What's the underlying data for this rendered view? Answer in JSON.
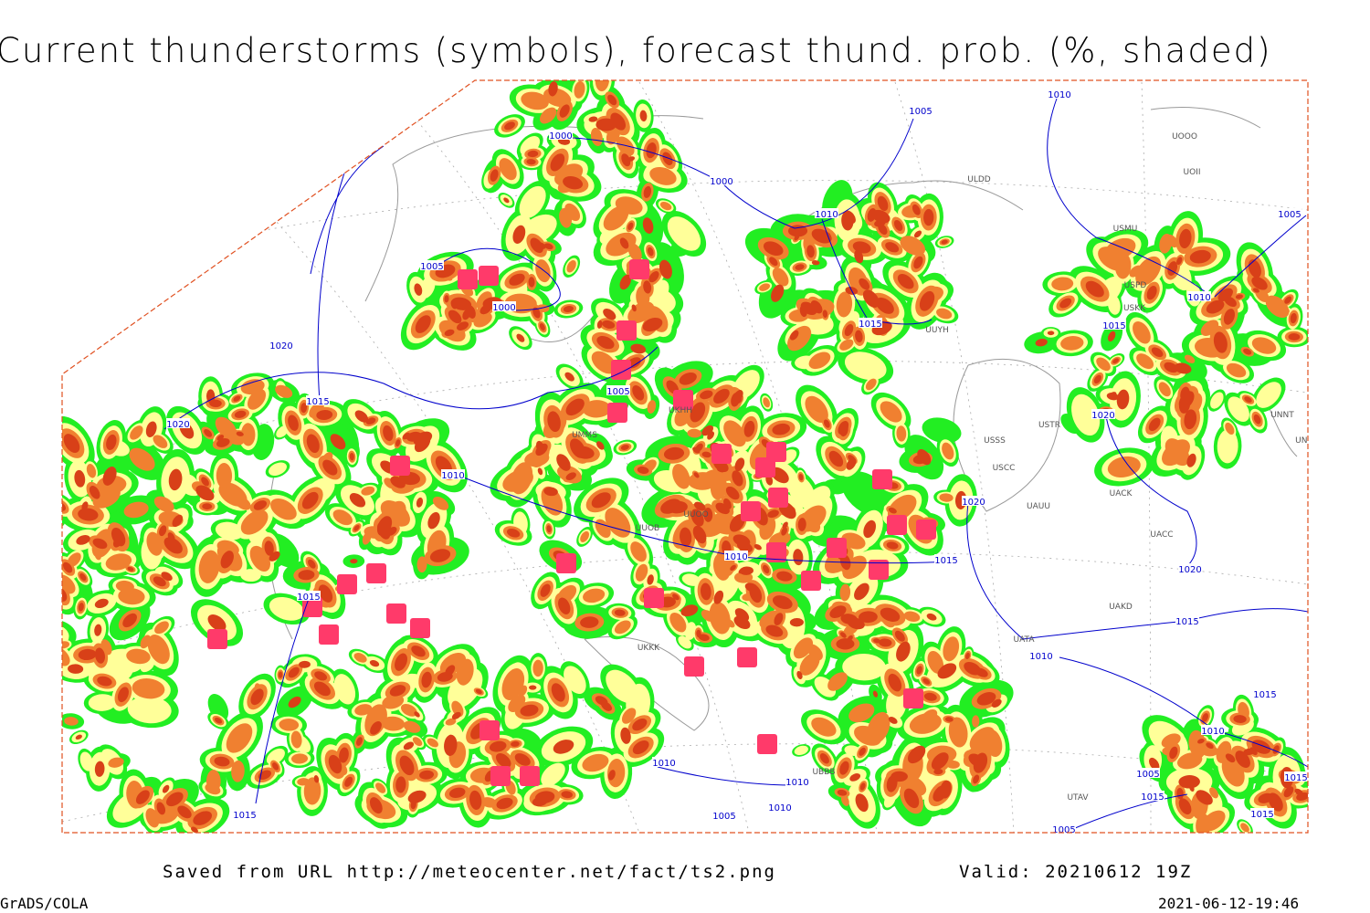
{
  "title": "Current thunderstorms (symbols), forecast thund. prob. (%, shaded)",
  "footer": {
    "source": "Saved from URL http://meteocenter.net/fact/ts2.png",
    "valid": "Valid: 20210612 19Z",
    "software": "GrADS/COLA",
    "timestamp": "2021-06-12-19:46"
  },
  "isobar_labels": [
    "1010",
    "1005",
    "1000",
    "1000",
    "1010",
    "1005",
    "1005",
    "1000",
    "1010",
    "1015",
    "1015",
    "1020",
    "1015",
    "1005",
    "1020",
    "1010",
    "1020",
    "1020",
    "1010",
    "1015",
    "1015",
    "1020",
    "1015",
    "1010",
    "1015",
    "1010",
    "1010",
    "1010",
    "1005",
    "1015",
    "1015",
    "1010",
    "1005",
    "1015",
    "1015",
    "1005"
  ],
  "stations": [
    "ULDD",
    "USMU",
    "UOOO",
    "UOII",
    "USPD",
    "USKK",
    "USSS",
    "USTR",
    "USCC",
    "UACK",
    "UAUU",
    "UACC",
    "UAKD",
    "UATA",
    "UNNT",
    "UNBB",
    "UUOO",
    "UUOB",
    "UKHH",
    "UMMS",
    "UKKK",
    "UUYH",
    "UTAV",
    "UBBB"
  ]
}
